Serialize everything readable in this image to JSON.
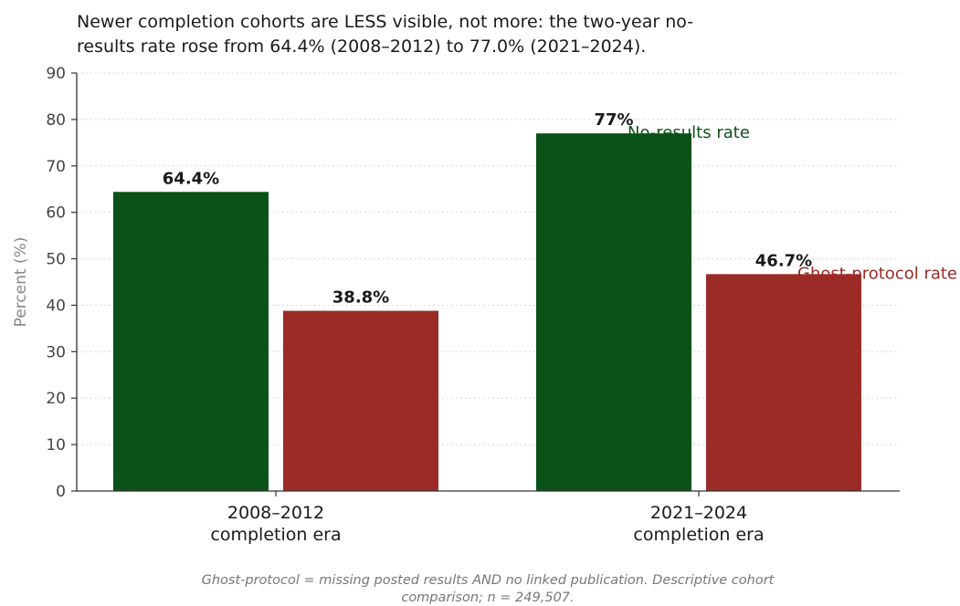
{
  "title": {
    "line1": "Newer completion cohorts are LESS visible, not more: the two-year no-",
    "line2": "results rate rose from 64.4% (2008–2012) to 77.0% (2021–2024)."
  },
  "footnote": {
    "line1": "Ghost-protocol = missing posted results AND no linked publication. Descriptive cohort",
    "line2": "comparison; n = 249,507."
  },
  "chart_data": {
    "type": "bar",
    "title": "Newer completion cohorts are LESS visible, not more: the two-year no-results rate rose from 64.4% (2008–2012) to 77.0% (2021–2024).",
    "categories": [
      [
        "2008–2012",
        "completion era"
      ],
      [
        "2021–2024",
        "completion era"
      ]
    ],
    "series": [
      {
        "name": "No-results rate",
        "values": [
          64.4,
          77.0
        ],
        "labels": [
          "64.4%",
          "77%"
        ],
        "color": "#0b5219"
      },
      {
        "name": "Ghost-protocol rate",
        "values": [
          38.8,
          46.7
        ],
        "labels": [
          "38.8%",
          "46.7%"
        ],
        "color": "#9b2b27"
      }
    ],
    "ylabel": "Percent (%)",
    "xlabel": "",
    "ylim": [
      0,
      90
    ],
    "yticks": [
      0,
      10,
      20,
      30,
      40,
      50,
      60,
      70,
      80,
      90
    ],
    "grid": true,
    "legend": "direct labels at the end of the right-hand bars"
  }
}
